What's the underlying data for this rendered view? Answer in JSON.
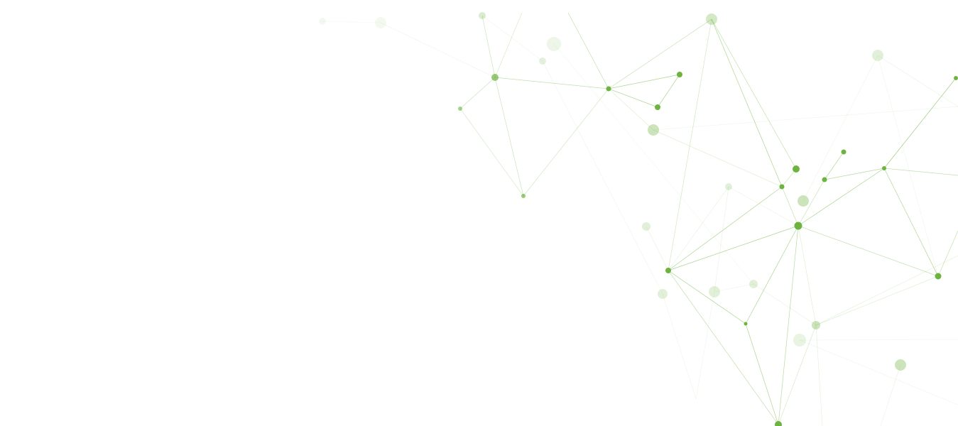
{
  "background": {
    "pattern": "network-graph",
    "colors": {
      "background": "#ffffff",
      "node": "#6db33f",
      "line": "#6db33f"
    }
  }
}
